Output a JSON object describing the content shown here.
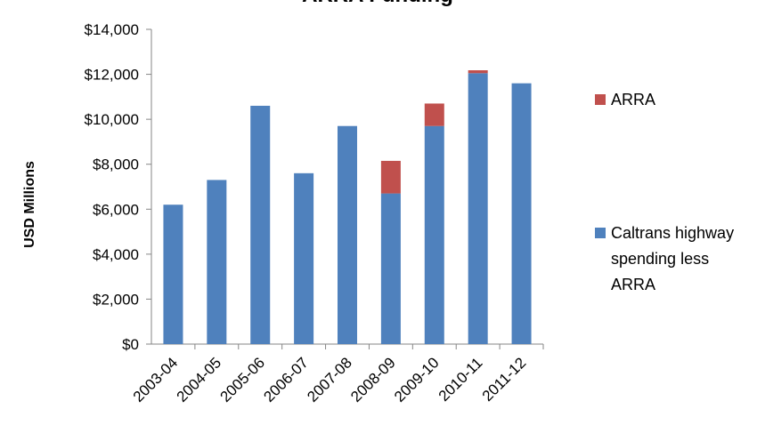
{
  "chart_data": {
    "type": "stacked_bar",
    "title": "ARRA Funding",
    "y_label": "USD Millions",
    "categories": [
      "2003-04",
      "2004-05",
      "2005-06",
      "2006-07",
      "2007-08",
      "2008-09",
      "2009-10",
      "2010-11",
      "2011-12"
    ],
    "series": [
      {
        "name": "Caltrans highway spending less ARRA",
        "color": "#4f81bd",
        "values": [
          6200,
          7300,
          10600,
          7600,
          9700,
          6700,
          9700,
          12050,
          11600
        ]
      },
      {
        "name": "ARRA",
        "color": "#c0504d",
        "values": [
          null,
          null,
          null,
          null,
          null,
          1450,
          1000,
          130,
          null
        ]
      }
    ],
    "ylim": [
      0,
      14000
    ],
    "yticks": [
      {
        "value": 0,
        "label": "$0"
      },
      {
        "value": 2000,
        "label": "$2,000"
      },
      {
        "value": 4000,
        "label": "$4,000"
      },
      {
        "value": 6000,
        "label": "$6,000"
      },
      {
        "value": 8000,
        "label": "$8,000"
      },
      {
        "value": 10000,
        "label": "$10,000"
      },
      {
        "value": 12000,
        "label": "$12,000"
      },
      {
        "value": 14000,
        "label": "$14,000"
      }
    ],
    "grid": false,
    "legend": "right"
  }
}
